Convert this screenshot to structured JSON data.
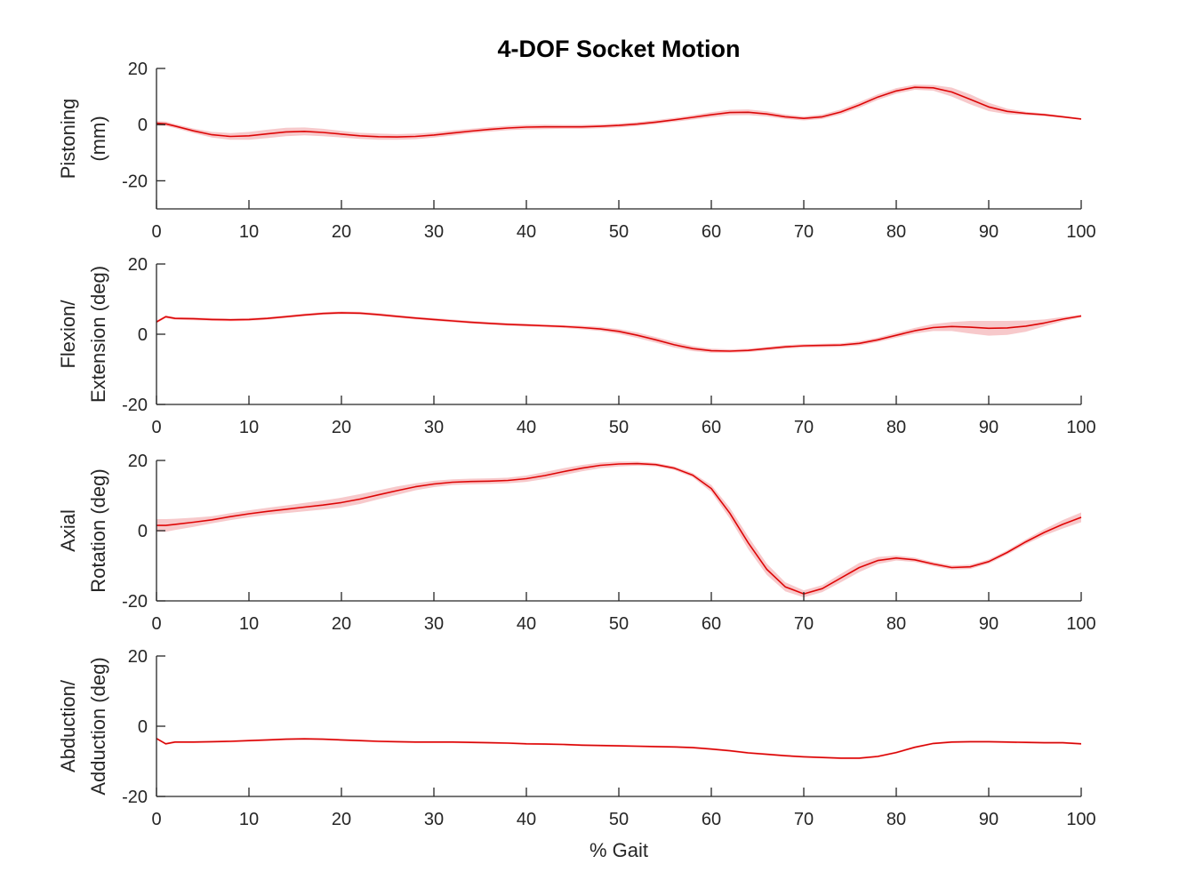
{
  "colors": {
    "line": "#ff0000",
    "band": "#f7c9cb",
    "axis": "#262626"
  },
  "chart_data": {
    "type": "line",
    "title": "4-DOF Socket Motion",
    "xlabel": "% Gait",
    "x_ticks": [
      0,
      10,
      20,
      30,
      40,
      50,
      60,
      70,
      80,
      90,
      100
    ],
    "xlim": [
      0,
      100
    ],
    "grid": false,
    "subplots": [
      {
        "ylabel": [
          "Pistoning",
          "(mm)"
        ],
        "ylim": [
          -30,
          20
        ],
        "y_ticks": [
          -20,
          0,
          20
        ],
        "x": [
          0,
          1,
          2,
          4,
          6,
          8,
          10,
          12,
          14,
          16,
          18,
          20,
          22,
          24,
          26,
          28,
          30,
          32,
          34,
          36,
          38,
          40,
          42,
          44,
          46,
          48,
          50,
          52,
          54,
          56,
          58,
          60,
          62,
          64,
          66,
          68,
          70,
          72,
          74,
          76,
          78,
          80,
          82,
          84,
          86,
          88,
          90,
          92,
          94,
          96,
          98,
          100
        ],
        "y": [
          0.5,
          0.3,
          -0.5,
          -2.2,
          -3.6,
          -4.2,
          -4.0,
          -3.3,
          -2.6,
          -2.4,
          -2.8,
          -3.4,
          -4.0,
          -4.3,
          -4.4,
          -4.2,
          -3.7,
          -3.0,
          -2.3,
          -1.7,
          -1.2,
          -0.9,
          -0.8,
          -0.8,
          -0.8,
          -0.6,
          -0.3,
          0.2,
          0.9,
          1.7,
          2.6,
          3.5,
          4.3,
          4.4,
          3.8,
          2.8,
          2.2,
          2.8,
          4.5,
          7.0,
          9.8,
          12.0,
          13.3,
          13.1,
          11.6,
          9.0,
          6.3,
          4.7,
          4.0,
          3.5,
          2.8,
          2.0
        ],
        "spread": [
          0.8,
          0.8,
          0.7,
          0.8,
          1.0,
          1.2,
          1.4,
          1.5,
          1.5,
          1.4,
          1.3,
          1.2,
          1.1,
          1.1,
          1.0,
          1.0,
          0.9,
          0.9,
          0.8,
          0.8,
          0.8,
          0.8,
          0.8,
          0.7,
          0.7,
          0.7,
          0.7,
          0.7,
          0.7,
          0.7,
          0.8,
          0.9,
          1.0,
          1.0,
          0.9,
          0.8,
          0.7,
          0.8,
          0.9,
          1.0,
          1.0,
          1.0,
          0.9,
          1.0,
          1.6,
          1.8,
          1.5,
          1.0,
          0.6,
          0.5,
          0.4,
          0.3
        ]
      },
      {
        "ylabel": [
          "Flexion/",
          "Extension (deg)"
        ],
        "ylim": [
          -20,
          20
        ],
        "y_ticks": [
          -20,
          0,
          20
        ],
        "x": [
          0,
          1,
          2,
          4,
          6,
          8,
          10,
          12,
          14,
          16,
          18,
          20,
          22,
          24,
          26,
          28,
          30,
          32,
          34,
          36,
          38,
          40,
          42,
          44,
          46,
          48,
          50,
          52,
          54,
          56,
          58,
          60,
          62,
          64,
          66,
          68,
          70,
          72,
          74,
          76,
          78,
          80,
          82,
          84,
          86,
          88,
          90,
          92,
          94,
          96,
          98,
          100
        ],
        "y": [
          3.5,
          5.0,
          4.5,
          4.4,
          4.2,
          4.1,
          4.2,
          4.5,
          5.0,
          5.5,
          5.9,
          6.1,
          6.0,
          5.6,
          5.1,
          4.6,
          4.2,
          3.8,
          3.4,
          3.1,
          2.8,
          2.6,
          2.4,
          2.2,
          1.9,
          1.5,
          0.8,
          -0.3,
          -1.6,
          -3.0,
          -4.1,
          -4.7,
          -4.8,
          -4.6,
          -4.1,
          -3.6,
          -3.3,
          -3.2,
          -3.1,
          -2.6,
          -1.6,
          -0.3,
          1.0,
          1.9,
          2.2,
          2.0,
          1.7,
          1.8,
          2.3,
          3.2,
          4.3,
          5.2
        ],
        "spread": [
          0.4,
          0.4,
          0.4,
          0.4,
          0.4,
          0.4,
          0.4,
          0.4,
          0.4,
          0.4,
          0.4,
          0.4,
          0.4,
          0.4,
          0.4,
          0.4,
          0.4,
          0.4,
          0.4,
          0.4,
          0.4,
          0.4,
          0.4,
          0.4,
          0.5,
          0.6,
          0.7,
          0.8,
          0.8,
          0.8,
          0.7,
          0.6,
          0.5,
          0.5,
          0.5,
          0.5,
          0.5,
          0.5,
          0.5,
          0.6,
          0.6,
          0.7,
          0.8,
          1.0,
          1.3,
          1.8,
          2.1,
          2.0,
          1.6,
          1.0,
          0.6,
          0.4
        ]
      },
      {
        "ylabel": [
          "Axial",
          "Rotation (deg)"
        ],
        "ylim": [
          -20,
          20
        ],
        "y_ticks": [
          -20,
          0,
          20
        ],
        "x": [
          0,
          1,
          2,
          4,
          6,
          8,
          10,
          12,
          14,
          16,
          18,
          20,
          22,
          24,
          26,
          28,
          30,
          32,
          34,
          36,
          38,
          40,
          42,
          44,
          46,
          48,
          50,
          52,
          54,
          56,
          58,
          60,
          62,
          64,
          66,
          68,
          70,
          72,
          74,
          76,
          78,
          80,
          82,
          84,
          86,
          88,
          90,
          92,
          94,
          96,
          98,
          100
        ],
        "y": [
          1.5,
          1.5,
          1.8,
          2.4,
          3.1,
          4.0,
          4.8,
          5.5,
          6.1,
          6.7,
          7.3,
          8.0,
          9.0,
          10.2,
          11.4,
          12.5,
          13.3,
          13.8,
          14.0,
          14.1,
          14.3,
          14.8,
          15.7,
          16.8,
          17.8,
          18.6,
          19.0,
          19.1,
          18.8,
          17.8,
          15.8,
          12.0,
          5.0,
          -3.5,
          -11.0,
          -16.0,
          -18.0,
          -16.5,
          -13.5,
          -10.5,
          -8.5,
          -7.8,
          -8.3,
          -9.5,
          -10.5,
          -10.3,
          -8.8,
          -6.2,
          -3.2,
          -0.5,
          1.8,
          3.8
        ],
        "spread": [
          1.8,
          1.8,
          1.6,
          1.3,
          1.0,
          1.0,
          1.0,
          1.0,
          1.1,
          1.2,
          1.3,
          1.4,
          1.4,
          1.3,
          1.2,
          1.0,
          0.9,
          0.8,
          0.8,
          0.8,
          0.8,
          0.9,
          1.0,
          1.0,
          0.9,
          0.8,
          0.7,
          0.6,
          0.5,
          0.5,
          0.6,
          1.0,
          1.5,
          1.8,
          1.6,
          1.3,
          1.0,
          1.0,
          1.2,
          1.3,
          1.0,
          0.7,
          0.6,
          0.6,
          0.6,
          0.6,
          0.6,
          0.6,
          0.7,
          0.9,
          1.2,
          1.4
        ]
      },
      {
        "ylabel": [
          "Abduction/",
          "Adduction (deg)"
        ],
        "ylim": [
          -20,
          20
        ],
        "y_ticks": [
          -20,
          0,
          20
        ],
        "x": [
          0,
          1,
          2,
          4,
          6,
          8,
          10,
          12,
          14,
          16,
          18,
          20,
          22,
          24,
          26,
          28,
          30,
          32,
          34,
          36,
          38,
          40,
          42,
          44,
          46,
          48,
          50,
          52,
          54,
          56,
          58,
          60,
          62,
          64,
          66,
          68,
          70,
          72,
          74,
          76,
          78,
          80,
          82,
          84,
          86,
          88,
          90,
          92,
          94,
          96,
          98,
          100
        ],
        "y": [
          -3.5,
          -5.0,
          -4.5,
          -4.5,
          -4.4,
          -4.3,
          -4.1,
          -3.9,
          -3.7,
          -3.6,
          -3.7,
          -3.9,
          -4.1,
          -4.3,
          -4.4,
          -4.5,
          -4.5,
          -4.5,
          -4.6,
          -4.7,
          -4.8,
          -5.0,
          -5.1,
          -5.2,
          -5.4,
          -5.5,
          -5.6,
          -5.7,
          -5.8,
          -5.9,
          -6.1,
          -6.5,
          -7.0,
          -7.6,
          -8.0,
          -8.4,
          -8.7,
          -8.9,
          -9.1,
          -9.1,
          -8.6,
          -7.5,
          -6.0,
          -4.9,
          -4.5,
          -4.4,
          -4.4,
          -4.5,
          -4.6,
          -4.7,
          -4.7,
          -5.0
        ],
        "spread": [
          0.3,
          0.3,
          0.3,
          0.3,
          0.3,
          0.3,
          0.3,
          0.3,
          0.3,
          0.3,
          0.3,
          0.3,
          0.3,
          0.3,
          0.3,
          0.3,
          0.3,
          0.3,
          0.3,
          0.3,
          0.3,
          0.3,
          0.3,
          0.3,
          0.3,
          0.3,
          0.3,
          0.3,
          0.3,
          0.3,
          0.3,
          0.3,
          0.3,
          0.3,
          0.3,
          0.3,
          0.3,
          0.3,
          0.3,
          0.3,
          0.3,
          0.3,
          0.3,
          0.3,
          0.3,
          0.3,
          0.3,
          0.3,
          0.3,
          0.3,
          0.3,
          0.3
        ]
      }
    ]
  }
}
